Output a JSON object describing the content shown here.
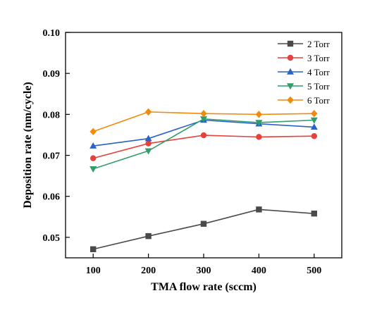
{
  "chart_data": {
    "type": "line",
    "x": [
      100,
      200,
      300,
      400,
      500
    ],
    "xlabel": "TMA flow rate (sccm)",
    "ylabel": "Deposition rate (nm/cycle)",
    "xlim": [
      50,
      550
    ],
    "ylim": [
      0.045,
      0.1
    ],
    "xticks": [
      "100",
      "200",
      "300",
      "400",
      "500"
    ],
    "yticks": [
      "0.05",
      "0.06",
      "0.07",
      "0.08",
      "0.09",
      "0.10"
    ],
    "grid": false,
    "legend": "top-right",
    "series": [
      {
        "name": "2 Torr",
        "color": "#4a4a4a",
        "marker": "square",
        "values": [
          0.0471,
          0.0503,
          0.0533,
          0.0568,
          0.0558
        ]
      },
      {
        "name": "3 Torr",
        "color": "#e8413c",
        "marker": "circle",
        "values": [
          0.0693,
          0.0729,
          0.0749,
          0.0745,
          0.0747
        ]
      },
      {
        "name": "4 Torr",
        "color": "#2a62c9",
        "marker": "triangle-up",
        "values": [
          0.0723,
          0.0741,
          0.0786,
          0.0777,
          0.0769
        ]
      },
      {
        "name": "5 Torr",
        "color": "#2f9e6a",
        "marker": "triangle-down",
        "values": [
          0.0667,
          0.0711,
          0.0789,
          0.078,
          0.0786
        ]
      },
      {
        "name": "6 Torr",
        "color": "#f28a0b",
        "marker": "diamond",
        "values": [
          0.0758,
          0.0806,
          0.0802,
          0.08,
          0.0802
        ]
      }
    ]
  }
}
